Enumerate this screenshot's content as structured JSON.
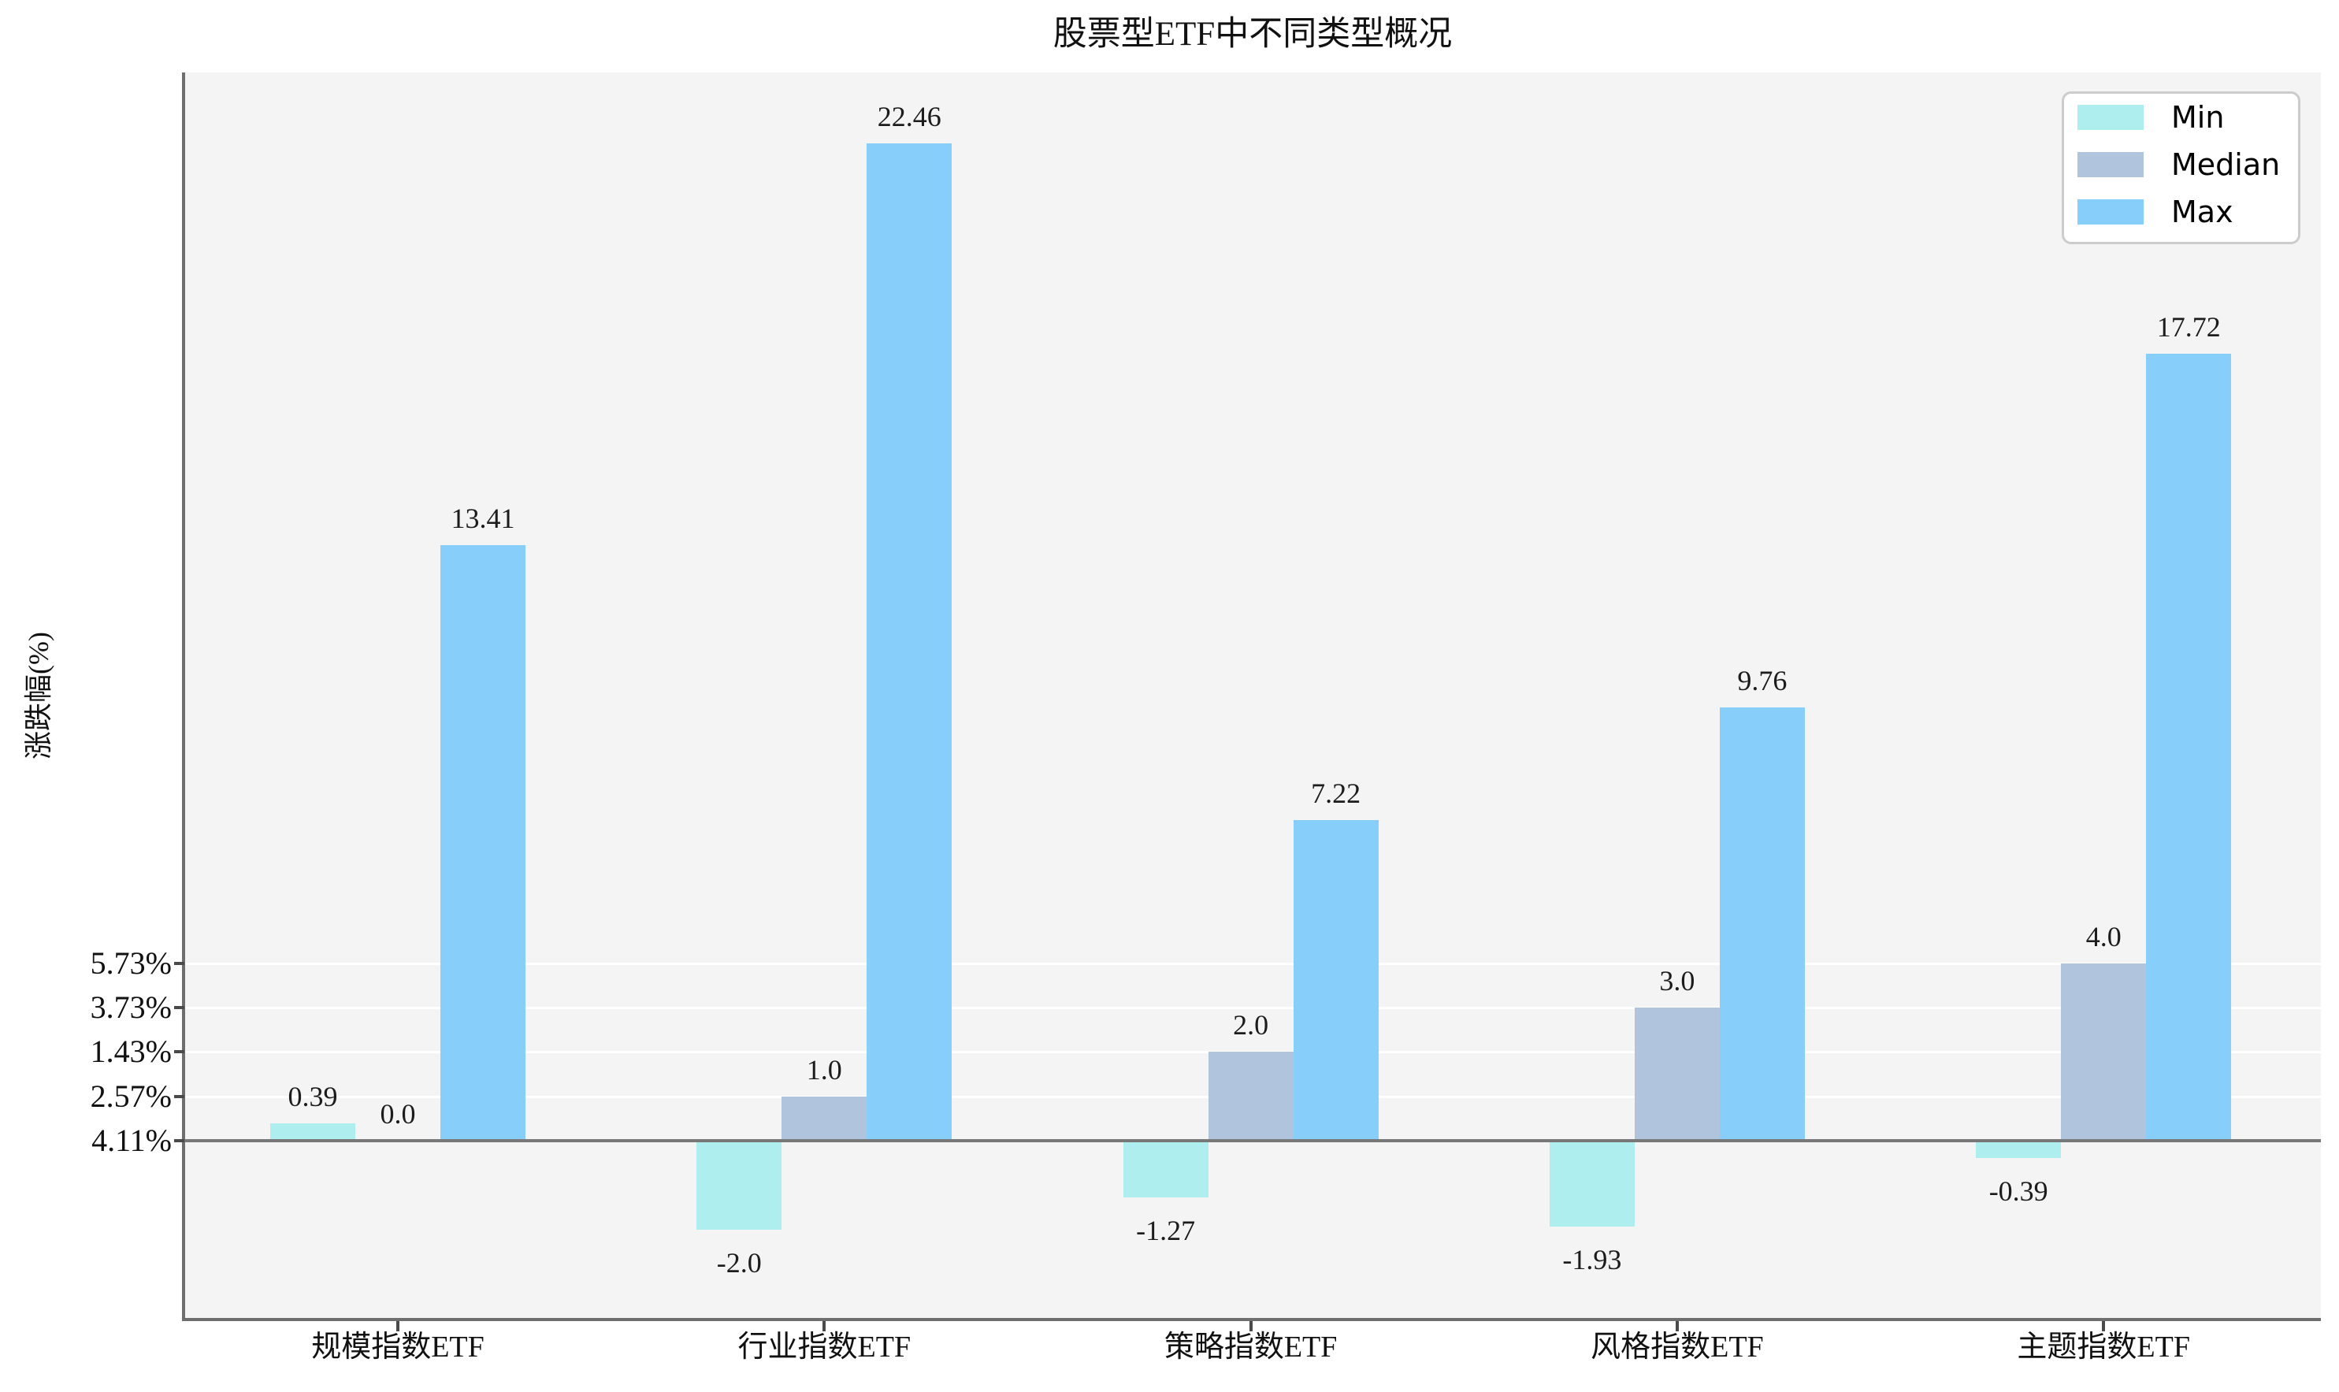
{
  "title": "股票型ETF中不同类型概况",
  "axes": {
    "ylabel": "涨跌幅(%)",
    "yticks": [
      {
        "value": 4,
        "label": "5.73%"
      },
      {
        "value": 3,
        "label": "3.73%"
      },
      {
        "value": 2,
        "label": "1.43%"
      },
      {
        "value": 1,
        "label": "2.57%"
      },
      {
        "value": 0,
        "label": "4.11%"
      }
    ]
  },
  "legend": {
    "position": "upper-right",
    "items": [
      {
        "name": "Min",
        "color": "#AFEEEE"
      },
      {
        "name": "Median",
        "color": "#B0C4DE"
      },
      {
        "name": "Max",
        "color": "#87CEFA"
      }
    ]
  },
  "colors": {
    "plot_background": "#f4f4f5",
    "figure_background": "#ffffff",
    "gridline": "#ffffff",
    "zero_line": "#787878",
    "min_bar": "#AFEEEE",
    "median_bar": "#B0C4DE",
    "max_bar": "#87CEFA"
  },
  "chart_data": {
    "type": "bar",
    "title": "股票型ETF中不同类型概况",
    "xlabel": "",
    "ylabel": "涨跌幅(%)",
    "categories": [
      "规模指数ETF",
      "行业指数ETF",
      "策略指数ETF",
      "风格指数ETF",
      "主题指数ETF"
    ],
    "series": [
      {
        "name": "Min",
        "color": "#AFEEEE",
        "values": [
          0.39,
          -2.0,
          -1.27,
          -1.93,
          -0.39
        ]
      },
      {
        "name": "Median",
        "color": "#B0C4DE",
        "values": [
          0.0,
          1.0,
          2.0,
          3.0,
          4.0
        ]
      },
      {
        "name": "Max",
        "color": "#87CEFA",
        "values": [
          13.41,
          22.46,
          7.22,
          9.76,
          17.72
        ]
      }
    ],
    "data_labels": [
      [
        "0.39",
        "-2.0",
        "-1.27",
        "-1.93",
        "-0.39"
      ],
      [
        "0.0",
        "1.0",
        "2.0",
        "3.0",
        "4.0"
      ],
      [
        "13.41",
        "22.46",
        "7.22",
        "9.76",
        "17.72"
      ]
    ],
    "ytick_gridlines_at_values": [
      0,
      1,
      2,
      3,
      4
    ],
    "zero_line": true,
    "legend_position": "upper-right",
    "grid": "horizontal white lines at labeled ticks only",
    "ylim_approx": [
      -4.0,
      24.0
    ]
  }
}
